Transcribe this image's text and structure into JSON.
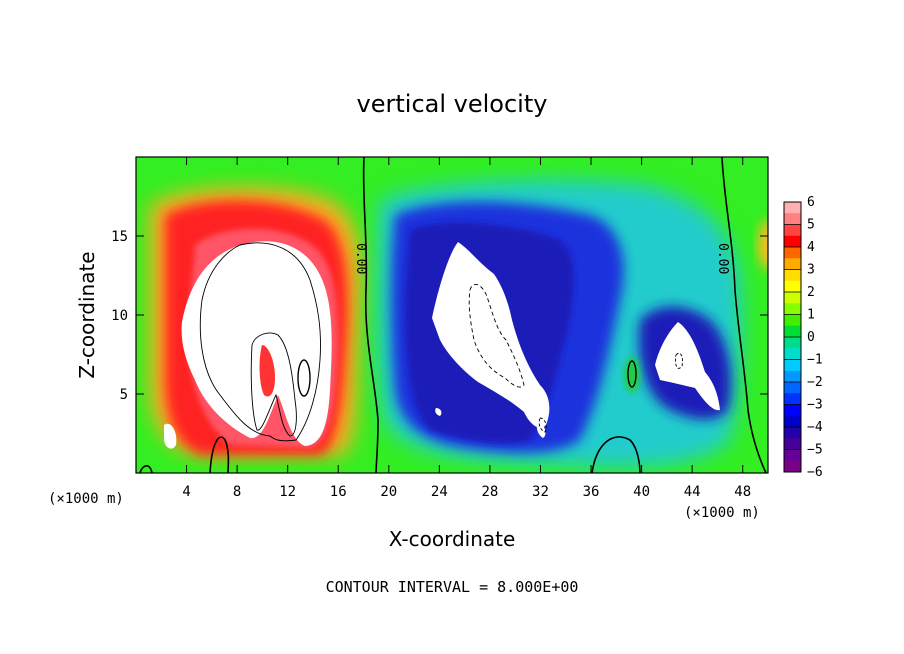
{
  "chart_data": {
    "type": "heatmap",
    "title": "vertical velocity",
    "xlabel": "X-coordinate",
    "ylabel": "Z-coordinate",
    "x_unit_label": "(×1000 m)",
    "xlim": [
      0,
      50
    ],
    "ylim": [
      0,
      20
    ],
    "x_ticks": [
      4,
      8,
      12,
      16,
      20,
      24,
      28,
      32,
      36,
      40,
      44,
      48
    ],
    "y_ticks": [
      5,
      10,
      15
    ],
    "colorbar": {
      "ticks": [
        6,
        5,
        4,
        3,
        2,
        1,
        0,
        -1,
        -2,
        -3,
        -4,
        -5,
        -6
      ],
      "range": [
        -6,
        6
      ]
    },
    "contour_labels": [
      "0.00",
      "0.00"
    ],
    "footer": "CONTOUR INTERVAL = 8.000E+00",
    "colors": {
      "background_field": "#22dd22",
      "updraft": "#ff2222",
      "downdraft": "#1111cc",
      "saturated_high": "#ffffff",
      "saturated_low": "#ffffff"
    },
    "features": [
      {
        "kind": "updraft",
        "center_x": 10,
        "center_z": 10,
        "peak": 6
      },
      {
        "kind": "downdraft",
        "center_x": 28,
        "center_z": 10,
        "peak": -6
      },
      {
        "kind": "downdraft",
        "center_x": 43,
        "center_z": 7,
        "peak": -6
      }
    ]
  }
}
